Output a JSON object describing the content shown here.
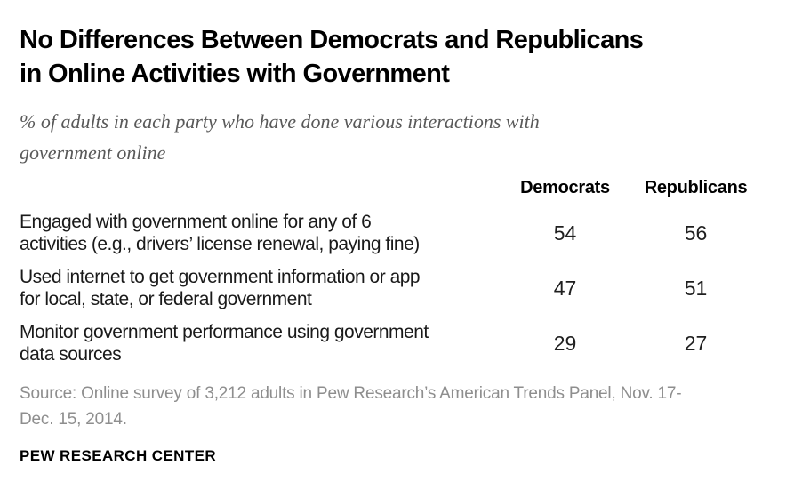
{
  "header": {
    "title_lines": [
      "No Differences Between Democrats and Republicans",
      "in Online Activities with Government"
    ],
    "subtitle_lines": [
      "% of adults in each party who have done various interactions with",
      "government online"
    ]
  },
  "table": {
    "columns": [
      "Democrats",
      "Republicans"
    ],
    "rows": [
      {
        "label_lines": [
          "Engaged with government online for any of 6",
          "activities (e.g., drivers’ license renewal, paying fine)"
        ],
        "democrats": "54",
        "republicans": "56"
      },
      {
        "label_lines": [
          "Used internet to get government information or app",
          "for local, state, or federal government"
        ],
        "democrats": "47",
        "republicans": "51"
      },
      {
        "label_lines": [
          "Monitor government performance using government",
          "data sources"
        ],
        "democrats": "29",
        "republicans": "27"
      }
    ]
  },
  "footer": {
    "source_lines": [
      "Source: Online survey of 3,212 adults in Pew Research’s American Trends Panel, Nov. 17-",
      "Dec. 15, 2014."
    ],
    "branding": "PEW RESEARCH CENTER"
  },
  "colors": {
    "background": "#ffffff",
    "title": "#000000",
    "subtitle": "#595959",
    "label": "#1a1a1a",
    "value": "#1f1f1f",
    "source": "#8e8e8e"
  },
  "chart_data": {
    "type": "table",
    "title": "No Differences Between Democrats and Republicans in Online Activities with Government",
    "subtitle": "% of adults in each party who have done various interactions with government online",
    "categories": [
      "Engaged with government online for any of 6 activities (e.g., drivers’ license renewal, paying fine)",
      "Used internet to get government information or app for local, state, or federal government",
      "Monitor government performance using government data sources"
    ],
    "series": [
      {
        "name": "Democrats",
        "values": [
          54,
          47,
          29
        ]
      },
      {
        "name": "Republicans",
        "values": [
          56,
          51,
          27
        ]
      }
    ],
    "unit": "% of adults in each party",
    "source": "Source: Online survey of 3,212 adults in Pew Research’s American Trends Panel, Nov. 17-Dec. 15, 2014.",
    "branding": "PEW RESEARCH CENTER"
  }
}
